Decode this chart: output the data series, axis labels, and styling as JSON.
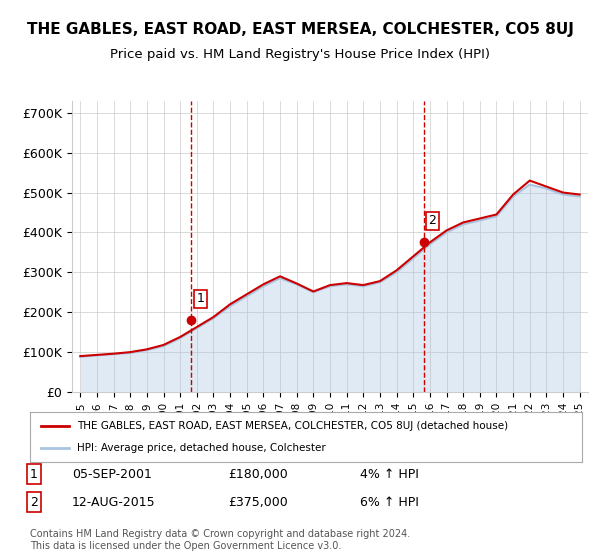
{
  "title": "THE GABLES, EAST ROAD, EAST MERSEA, COLCHESTER, CO5 8UJ",
  "subtitle": "Price paid vs. HM Land Registry's House Price Index (HPI)",
  "ylabel_ticks": [
    "£0",
    "£100K",
    "£200K",
    "£300K",
    "£400K",
    "£500K",
    "£600K",
    "£700K"
  ],
  "ytick_vals": [
    0,
    100000,
    200000,
    300000,
    400000,
    500000,
    600000,
    700000
  ],
  "ylim": [
    0,
    730000
  ],
  "sale1_date": "05-SEP-2001",
  "sale1_price": 180000,
  "sale1_pct": "4%",
  "sale2_date": "12-AUG-2015",
  "sale2_price": 375000,
  "sale2_pct": "6%",
  "legend_line1": "THE GABLES, EAST ROAD, EAST MERSEA, COLCHESTER, CO5 8UJ (detached house)",
  "legend_line2": "HPI: Average price, detached house, Colchester",
  "footer": "Contains HM Land Registry data © Crown copyright and database right 2024.\nThis data is licensed under the Open Government Licence v3.0.",
  "hpi_color": "#a8c4e0",
  "price_color": "#cc0000",
  "bg_color": "#ffffff",
  "grid_color": "#cccccc",
  "sale_vline_color": "#cc0000",
  "years": [
    1995,
    1996,
    1997,
    1998,
    1999,
    2000,
    2001,
    2002,
    2003,
    2004,
    2005,
    2006,
    2007,
    2008,
    2009,
    2010,
    2011,
    2012,
    2013,
    2014,
    2015,
    2016,
    2017,
    2018,
    2019,
    2020,
    2021,
    2022,
    2023,
    2024,
    2025
  ],
  "hpi_values": [
    88000,
    92000,
    95000,
    98000,
    105000,
    115000,
    135000,
    160000,
    185000,
    215000,
    240000,
    265000,
    285000,
    270000,
    250000,
    265000,
    270000,
    265000,
    275000,
    300000,
    335000,
    370000,
    400000,
    420000,
    430000,
    440000,
    490000,
    520000,
    510000,
    495000,
    490000
  ],
  "price_values": [
    90000,
    93000,
    96000,
    100000,
    107000,
    118000,
    138000,
    163000,
    188000,
    220000,
    245000,
    270000,
    290000,
    272000,
    252000,
    268000,
    273000,
    268000,
    278000,
    305000,
    340000,
    375000,
    405000,
    425000,
    435000,
    445000,
    495000,
    530000,
    515000,
    500000,
    495000
  ],
  "sale1_x": 2001.67,
  "sale2_x": 2015.62
}
